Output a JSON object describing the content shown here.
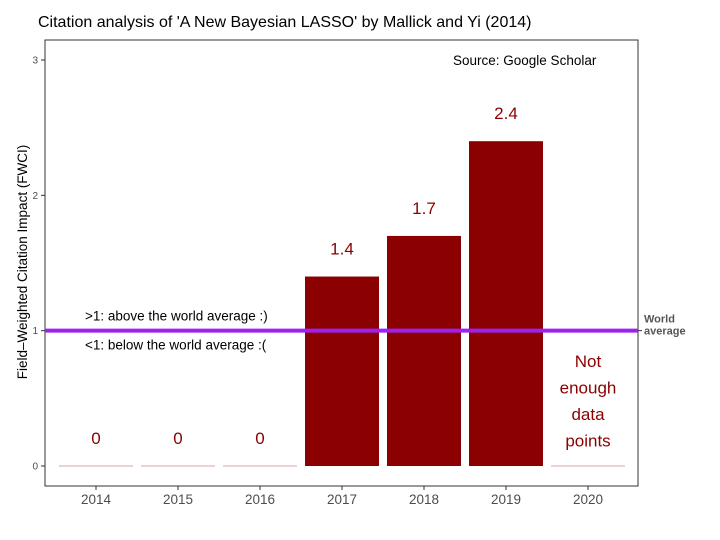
{
  "chart_data": {
    "type": "bar",
    "title": "Citation analysis of 'A New Bayesian LASSO' by Mallick and Yi (2014)",
    "source": "Source: Google Scholar",
    "xlabel": "",
    "ylabel": "Field–Weighted Citation Impact (FWCI)",
    "categories": [
      "2014",
      "2015",
      "2016",
      "2017",
      "2018",
      "2019",
      "2020"
    ],
    "values": [
      0,
      0,
      0,
      1.4,
      1.7,
      2.4,
      0
    ],
    "data_labels": [
      "0",
      "0",
      "0",
      "1.4",
      "1.7",
      "2.4",
      ""
    ],
    "ylim": [
      0,
      3
    ],
    "yticks": [
      0,
      1,
      2,
      3
    ],
    "grid": false,
    "bar_color": "#8b0000",
    "label_color": "#8b0000",
    "reference_line": {
      "value": 1,
      "color": "#a020f0",
      "label_lines": [
        "World",
        "average"
      ]
    },
    "annotations": {
      "above": ">1: above the world average :)",
      "below": "<1: below the world average :(",
      "not_enough_category": "2020",
      "not_enough_lines": [
        "Not",
        "enough",
        "data",
        "points"
      ]
    }
  }
}
